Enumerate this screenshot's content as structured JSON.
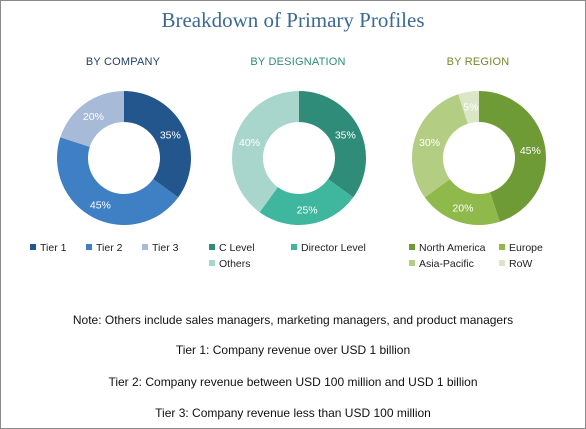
{
  "title": "Breakdown of Primary Profiles",
  "chart_data": [
    {
      "type": "pie",
      "title": "BY COMPANY",
      "title_color": "#1f3f66",
      "slices": [
        {
          "label": "Tier 1",
          "value": 35,
          "display": "35%",
          "color": "#23568c"
        },
        {
          "label": "Tier 2",
          "value": 45,
          "display": "45%",
          "color": "#3f7fc4"
        },
        {
          "label": "Tier 3",
          "value": 20,
          "display": "20%",
          "color": "#a7bbd8"
        }
      ]
    },
    {
      "type": "pie",
      "title": "BY DESIGNATION",
      "title_color": "#2e8b76",
      "slices": [
        {
          "label": "C Level",
          "value": 35,
          "display": "35%",
          "color": "#2f8c78"
        },
        {
          "label": "Director Level",
          "value": 25,
          "display": "25%",
          "color": "#3fb79f"
        },
        {
          "label": "Others",
          "value": 40,
          "display": "40%",
          "color": "#a9d6cc"
        }
      ]
    },
    {
      "type": "pie",
      "title": "BY REGION",
      "title_color": "#6f8a2a",
      "slices": [
        {
          "label": "North America",
          "value": 45,
          "display": "45%",
          "color": "#6f9b37"
        },
        {
          "label": "Europe",
          "value": 20,
          "display": "20%",
          "color": "#8fb94a"
        },
        {
          "label": "Asia-Pacific",
          "value": 30,
          "display": "30%",
          "color": "#b3ce82"
        },
        {
          "label": "RoW",
          "value": 5,
          "display": "5%",
          "color": "#dbe6c6"
        }
      ]
    }
  ],
  "notes": [
    "Note: Others include sales managers, marketing managers, and product managers",
    "Tier 1: Company revenue over USD 1 billion",
    "Tier 2: Company revenue between USD 100 million and USD 1 billion",
    "Tier 3: Company revenue less than USD 100 million"
  ]
}
